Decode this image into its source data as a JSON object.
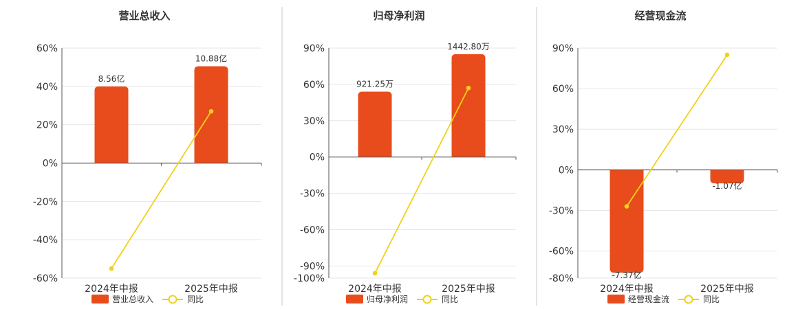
{
  "colors": {
    "bar": "#e84c1c",
    "line": "#f0d21a",
    "grid": "#e6e6e6",
    "axis": "#555555",
    "divider": "#c8c8c8"
  },
  "legend_line_label": "同比",
  "chart_data": [
    {
      "type": "bar",
      "title": "营业总收入",
      "categories": [
        "2024年中报",
        "2025年中报"
      ],
      "series": [
        {
          "name": "营业总收入",
          "kind": "bar",
          "values": [
            40,
            50.5
          ],
          "labels": [
            "8.56亿",
            "10.88亿"
          ]
        },
        {
          "name": "同比",
          "kind": "line",
          "values": [
            -55,
            27
          ]
        }
      ],
      "ylim": [
        -60,
        60
      ],
      "yticks": [
        60,
        40,
        20,
        0,
        -20,
        -40,
        -60
      ],
      "ytick_labels": [
        "60%",
        "40%",
        "20%",
        "0%",
        "-20%",
        "-40%",
        "-60%"
      ],
      "grid": true
    },
    {
      "type": "bar",
      "title": "归母净利润",
      "categories": [
        "2024年中报",
        "2025年中报"
      ],
      "series": [
        {
          "name": "归母净利润",
          "kind": "bar",
          "values": [
            54,
            85
          ],
          "labels": [
            "921.25万",
            "1442.80万"
          ]
        },
        {
          "name": "同比",
          "kind": "line",
          "values": [
            -96,
            57
          ]
        }
      ],
      "ylim": [
        -100,
        90
      ],
      "yticks": [
        90,
        60,
        30,
        0,
        -30,
        -60,
        -90,
        -100
      ],
      "ytick_labels": [
        "90%",
        "60%",
        "30%",
        "0%",
        "-30%",
        "-60%",
        "-90%",
        "-100%"
      ],
      "grid": true
    },
    {
      "type": "bar",
      "title": "经营现金流",
      "categories": [
        "2024年中报",
        "2025年中报"
      ],
      "series": [
        {
          "name": "经营现金流",
          "kind": "bar",
          "values": [
            -76,
            -10
          ],
          "labels": [
            "-7.37亿",
            "-1.07亿"
          ]
        },
        {
          "name": "同比",
          "kind": "line",
          "values": [
            -27,
            85
          ]
        }
      ],
      "ylim": [
        -80,
        90
      ],
      "yticks": [
        90,
        60,
        30,
        0,
        -30,
        -60,
        -80
      ],
      "ytick_labels": [
        "90%",
        "60%",
        "30%",
        "0%",
        "-30%",
        "-60%",
        "-80%"
      ],
      "grid": true
    }
  ]
}
